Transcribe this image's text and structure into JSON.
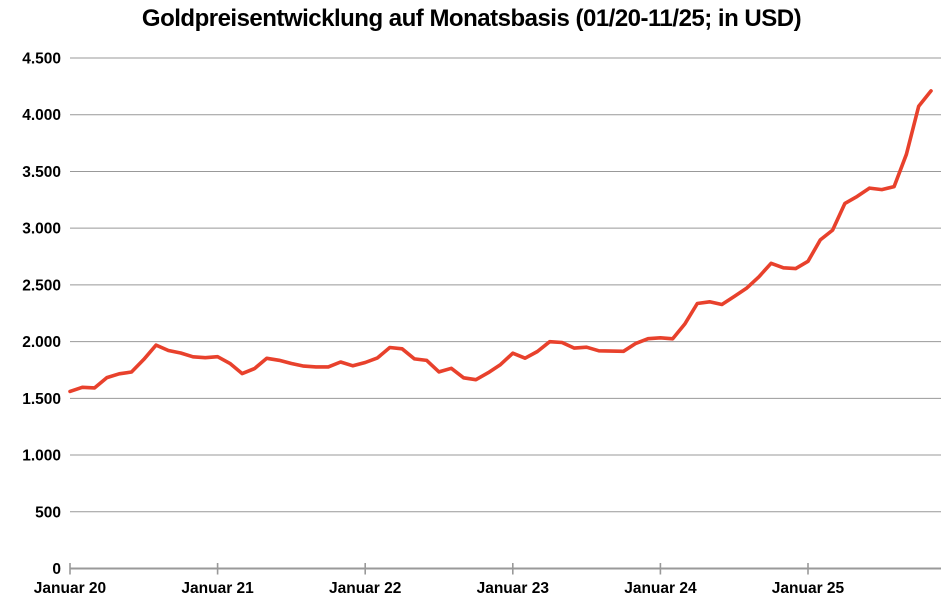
{
  "chart_data": {
    "type": "line",
    "title": "Goldpreisentwicklung auf Monatsbasis (01/20-11/25; in USD)",
    "xlabel": "",
    "ylabel": "",
    "ylim": [
      0,
      4500
    ],
    "grid": "horizontal",
    "legend": "none",
    "colors": {
      "line": "#e8412c",
      "grid": "#999999",
      "axis": "#999999",
      "text": "#000000",
      "background": "#ffffff"
    },
    "y_axis": {
      "tick_values": [
        0,
        500,
        1000,
        1500,
        2000,
        2500,
        3000,
        3500,
        4000,
        4500
      ],
      "tick_labels": [
        "0",
        "500",
        "1.000",
        "1.500",
        "2.000",
        "2.500",
        "3.000",
        "3.500",
        "4.000",
        "4.500"
      ]
    },
    "x_axis": {
      "tick_month_indices": [
        0,
        12,
        24,
        36,
        48,
        60
      ],
      "tick_labels": [
        "Januar 20",
        "Januar 21",
        "Januar 22",
        "Januar 23",
        "Januar 24",
        "Januar 25"
      ]
    },
    "months": [
      "01/20",
      "02/20",
      "03/20",
      "04/20",
      "05/20",
      "06/20",
      "07/20",
      "08/20",
      "09/20",
      "10/20",
      "11/20",
      "12/20",
      "01/21",
      "02/21",
      "03/21",
      "04/21",
      "05/21",
      "06/21",
      "07/21",
      "08/21",
      "09/21",
      "10/21",
      "11/21",
      "12/21",
      "01/22",
      "02/22",
      "03/22",
      "04/22",
      "05/22",
      "06/22",
      "07/22",
      "08/22",
      "09/22",
      "10/22",
      "11/22",
      "12/22",
      "01/23",
      "02/23",
      "03/23",
      "04/23",
      "05/23",
      "06/23",
      "07/23",
      "08/23",
      "09/23",
      "10/23",
      "11/23",
      "12/23",
      "01/24",
      "02/24",
      "03/24",
      "04/24",
      "05/24",
      "06/24",
      "07/24",
      "08/24",
      "09/24",
      "10/24",
      "11/24",
      "12/24",
      "01/25",
      "02/25",
      "03/25",
      "04/25",
      "05/25",
      "06/25",
      "07/25",
      "08/25",
      "09/25",
      "10/25",
      "11/25"
    ],
    "values": [
      1561,
      1597,
      1592,
      1683,
      1716,
      1732,
      1843,
      1969,
      1922,
      1900,
      1866,
      1858,
      1867,
      1808,
      1718,
      1762,
      1853,
      1835,
      1807,
      1784,
      1777,
      1777,
      1820,
      1787,
      1816,
      1856,
      1948,
      1937,
      1848,
      1834,
      1733,
      1765,
      1681,
      1664,
      1726,
      1797,
      1898,
      1854,
      1913,
      1999,
      1992,
      1943,
      1951,
      1919,
      1916,
      1915,
      1984,
      2026,
      2034,
      2025,
      2158,
      2336,
      2351,
      2327,
      2398,
      2470,
      2570,
      2690,
      2651,
      2644,
      2708,
      2897,
      2983,
      3218,
      3280,
      3353,
      3340,
      3366,
      3651,
      4075,
      4210
    ]
  }
}
